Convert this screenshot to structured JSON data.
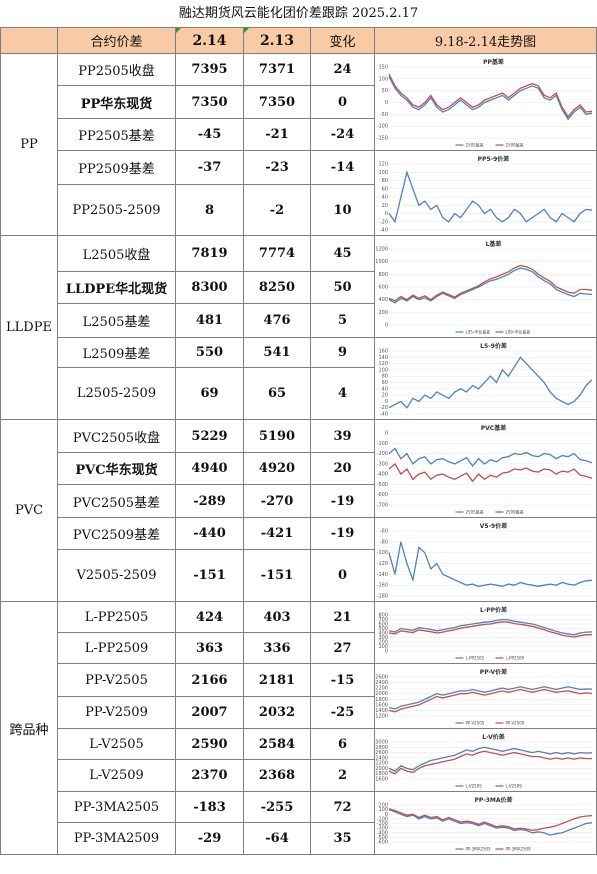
{
  "title": "融达期货风云能化团价差跟踪 2025.2.17",
  "header": {
    "name": "合约价差",
    "d1": "2.14",
    "d2": "2.13",
    "chg": "变化",
    "trend": "9.18-2.14走势图"
  },
  "groups": [
    {
      "label": "PP",
      "rows": [
        {
          "name": "PP2505收盘",
          "v1": "7395",
          "v2": "7371",
          "chg": "24",
          "bold": false
        },
        {
          "name": "PP华东现货",
          "v1": "7350",
          "v2": "7350",
          "chg": "0",
          "bold": true
        },
        {
          "name": "PP2505基差",
          "v1": "-45",
          "v2": "-21",
          "chg": "-24",
          "bold": false
        },
        {
          "name": "PP2509基差",
          "v1": "-37",
          "v2": "-23",
          "chg": "-14",
          "bold": false
        },
        {
          "name": "PP2505-2509",
          "v1": "8",
          "v2": "-2",
          "chg": "10",
          "bold": false
        }
      ]
    },
    {
      "label": "LLDPE",
      "rows": [
        {
          "name": "L2505收盘",
          "v1": "7819",
          "v2": "7774",
          "chg": "45",
          "bold": false
        },
        {
          "name": "LLDPE华北现货",
          "v1": "8300",
          "v2": "8250",
          "chg": "50",
          "bold": true
        },
        {
          "name": "L2505基差",
          "v1": "481",
          "v2": "476",
          "chg": "5",
          "bold": false
        },
        {
          "name": "L2509基差",
          "v1": "550",
          "v2": "541",
          "chg": "9",
          "bold": false
        },
        {
          "name": "L2505-2509",
          "v1": "69",
          "v2": "65",
          "chg": "4",
          "bold": false
        }
      ]
    },
    {
      "label": "PVC",
      "rows": [
        {
          "name": "PVC2505收盘",
          "v1": "5229",
          "v2": "5190",
          "chg": "39",
          "bold": false
        },
        {
          "name": "PVC华东现货",
          "v1": "4940",
          "v2": "4920",
          "chg": "20",
          "bold": true
        },
        {
          "name": "PVC2505基差",
          "v1": "-289",
          "v2": "-270",
          "chg": "-19",
          "bold": false
        },
        {
          "name": "PVC2509基差",
          "v1": "-440",
          "v2": "-421",
          "chg": "-19",
          "bold": false
        },
        {
          "name": "V2505-2509",
          "v1": "-151",
          "v2": "-151",
          "chg": "0",
          "bold": false
        }
      ]
    },
    {
      "label": "跨品种",
      "rows": [
        {
          "name": "L-PP2505",
          "v1": "424",
          "v2": "403",
          "chg": "21",
          "bold": false
        },
        {
          "name": "L-PP2509",
          "v1": "363",
          "v2": "336",
          "chg": "27",
          "bold": false
        },
        {
          "name": "PP-V2505",
          "v1": "2166",
          "v2": "2181",
          "chg": "-15",
          "bold": false
        },
        {
          "name": "PP-V2509",
          "v1": "2007",
          "v2": "2032",
          "chg": "-25",
          "bold": false
        },
        {
          "name": "L-V2505",
          "v1": "2590",
          "v2": "2584",
          "chg": "6",
          "bold": false
        },
        {
          "name": "L-V2509",
          "v1": "2370",
          "v2": "2368",
          "chg": "2",
          "bold": false
        },
        {
          "name": "PP-3MA2505",
          "v1": "-183",
          "v2": "-255",
          "chg": "72",
          "bold": false
        },
        {
          "name": "PP-3MA2509",
          "v1": "-29",
          "v2": "-64",
          "chg": "35",
          "bold": false
        }
      ]
    }
  ],
  "chart_data": [
    {
      "type": "line",
      "title": "PP基差",
      "ylim": [
        -150,
        150
      ],
      "yticks": [
        "150",
        "100",
        "50",
        "0",
        "-50",
        "-100",
        "-150"
      ],
      "legend": [
        "2505基差",
        "2509基差"
      ],
      "colors": [
        "#4f81bd",
        "#c0504d"
      ],
      "series": [
        {
          "name": "2505基差",
          "values": [
            110,
            60,
            30,
            10,
            -20,
            -30,
            -10,
            20,
            -20,
            -40,
            -30,
            -10,
            10,
            -10,
            -30,
            -20,
            0,
            10,
            20,
            30,
            10,
            30,
            50,
            60,
            70,
            60,
            20,
            10,
            30,
            -30,
            -70,
            -40,
            -20,
            -50,
            -45
          ]
        },
        {
          "name": "2509基差",
          "values": [
            120,
            70,
            40,
            20,
            -10,
            -20,
            0,
            30,
            -10,
            -30,
            -20,
            0,
            20,
            0,
            -20,
            -10,
            10,
            20,
            30,
            40,
            20,
            40,
            60,
            70,
            80,
            70,
            30,
            20,
            40,
            -20,
            -60,
            -30,
            -10,
            -40,
            -37
          ]
        }
      ]
    },
    {
      "type": "line",
      "title": "PP5-9价差",
      "ylim": [
        -40,
        120
      ],
      "yticks": [
        "120",
        "100",
        "80",
        "60",
        "40",
        "20",
        "0",
        "-20",
        "-40"
      ],
      "colors": [
        "#4f81bd"
      ],
      "series": [
        {
          "name": "",
          "values": [
            0,
            -20,
            40,
            100,
            60,
            20,
            30,
            10,
            20,
            -10,
            -20,
            0,
            -10,
            10,
            30,
            20,
            0,
            10,
            -10,
            -20,
            -10,
            10,
            0,
            -20,
            -10,
            0,
            10,
            -10,
            -20,
            0,
            -10,
            -20,
            0,
            10,
            8
          ]
        }
      ]
    },
    {
      "type": "line",
      "title": "L基差",
      "ylim": [
        0,
        1200
      ],
      "yticks": [
        "1200",
        "1000",
        "800",
        "600",
        "400",
        "200",
        "0"
      ],
      "legend": [
        "L05-华北基差",
        "L09-华北基差"
      ],
      "colors": [
        "#4f81bd",
        "#c0504d"
      ],
      "series": [
        {
          "name": "L05-华北基差",
          "values": [
            400,
            350,
            420,
            380,
            450,
            400,
            430,
            380,
            450,
            500,
            460,
            420,
            480,
            520,
            560,
            600,
            650,
            700,
            720,
            760,
            800,
            860,
            900,
            880,
            840,
            760,
            700,
            650,
            560,
            520,
            480,
            450,
            500,
            490,
            481
          ]
        },
        {
          "name": "L09-华北基差",
          "values": [
            420,
            380,
            450,
            400,
            470,
            420,
            460,
            400,
            470,
            520,
            480,
            440,
            500,
            540,
            580,
            620,
            680,
            730,
            760,
            800,
            840,
            900,
            940,
            920,
            880,
            800,
            740,
            690,
            600,
            560,
            520,
            500,
            560,
            560,
            550
          ]
        }
      ]
    },
    {
      "type": "line",
      "title": "L5-9价差",
      "ylim": [
        -40,
        160
      ],
      "yticks": [
        "160",
        "140",
        "120",
        "100",
        "80",
        "60",
        "40",
        "20",
        "0",
        "-20",
        "-40"
      ],
      "colors": [
        "#4f81bd"
      ],
      "series": [
        {
          "name": "",
          "values": [
            -20,
            -10,
            0,
            -20,
            10,
            0,
            20,
            10,
            30,
            20,
            10,
            30,
            40,
            30,
            50,
            40,
            60,
            80,
            60,
            100,
            80,
            110,
            140,
            120,
            100,
            80,
            60,
            30,
            10,
            0,
            -10,
            0,
            20,
            50,
            69
          ]
        }
      ]
    },
    {
      "type": "line",
      "title": "PVC基差",
      "ylim": [
        -700,
        0
      ],
      "yticks": [
        "0",
        "-100",
        "-200",
        "-300",
        "-400",
        "-500",
        "-600",
        "-700"
      ],
      "legend": [
        "2505基差",
        "2509基差"
      ],
      "colors": [
        "#4f81bd",
        "#c0504d"
      ],
      "series": [
        {
          "name": "2505基差",
          "values": [
            -200,
            -150,
            -250,
            -200,
            -300,
            -250,
            -230,
            -300,
            -260,
            -250,
            -280,
            -300,
            -270,
            -240,
            -320,
            -250,
            -300,
            -260,
            -280,
            -240,
            -230,
            -200,
            -210,
            -190,
            -220,
            -230,
            -200,
            -210,
            -250,
            -220,
            -230,
            -200,
            -260,
            -270,
            -289
          ]
        },
        {
          "name": "2509基差",
          "values": [
            -350,
            -300,
            -400,
            -350,
            -450,
            -400,
            -380,
            -450,
            -410,
            -400,
            -430,
            -450,
            -420,
            -390,
            -470,
            -400,
            -450,
            -410,
            -430,
            -390,
            -380,
            -350,
            -360,
            -340,
            -370,
            -380,
            -350,
            -360,
            -400,
            -370,
            -380,
            -350,
            -410,
            -420,
            -440
          ]
        }
      ]
    },
    {
      "type": "line",
      "title": "V5-9价差",
      "ylim": [
        -180,
        -60
      ],
      "yticks": [
        "-60",
        "-80",
        "-100",
        "-120",
        "-140",
        "-160",
        "-180"
      ],
      "colors": [
        "#4f81bd"
      ],
      "series": [
        {
          "name": "",
          "values": [
            -100,
            -140,
            -80,
            -120,
            -150,
            -90,
            -100,
            -130,
            -120,
            -140,
            -145,
            -150,
            -155,
            -160,
            -158,
            -162,
            -160,
            -158,
            -160,
            -162,
            -158,
            -160,
            -155,
            -158,
            -160,
            -162,
            -160,
            -158,
            -160,
            -155,
            -158,
            -160,
            -155,
            -152,
            -151
          ]
        }
      ]
    },
    {
      "type": "line",
      "title": "L-PP价差",
      "ylim": [
        0,
        800
      ],
      "yticks": [
        "800",
        "700",
        "600",
        "500",
        "400",
        "300",
        "200",
        "100",
        "0"
      ],
      "legend": [
        "L-PP2505",
        "L-PP2509"
      ],
      "colors": [
        "#4f81bd",
        "#c0504d"
      ],
      "series": [
        {
          "name": "L-PP2505",
          "values": [
            450,
            420,
            500,
            480,
            460,
            520,
            500,
            480,
            450,
            470,
            500,
            520,
            560,
            580,
            600,
            620,
            640,
            650,
            680,
            700,
            690,
            660,
            640,
            620,
            600,
            560,
            520,
            480,
            440,
            400,
            380,
            360,
            400,
            420,
            424
          ]
        },
        {
          "name": "L-PP2509",
          "values": [
            400,
            380,
            450,
            430,
            410,
            470,
            450,
            430,
            400,
            420,
            450,
            470,
            510,
            530,
            550,
            570,
            590,
            600,
            630,
            650,
            640,
            610,
            590,
            570,
            550,
            510,
            470,
            430,
            390,
            350,
            330,
            310,
            340,
            360,
            363
          ]
        }
      ]
    },
    {
      "type": "line",
      "title": "PP-V价差",
      "ylim": [
        1200,
        2600
      ],
      "yticks": [
        "2600",
        "2400",
        "2200",
        "2000",
        "1800",
        "1600",
        "1400",
        "1200"
      ],
      "legend": [
        "PP-V2505",
        "PP-V2509"
      ],
      "colors": [
        "#4f81bd",
        "#c0504d"
      ],
      "series": [
        {
          "name": "PP-V2505",
          "values": [
            1500,
            1450,
            1550,
            1600,
            1650,
            1700,
            1800,
            1900,
            2000,
            1950,
            2000,
            2050,
            2100,
            2100,
            2150,
            2100,
            2050,
            2100,
            2150,
            2200,
            2150,
            2200,
            2250,
            2200,
            2150,
            2200,
            2250,
            2200,
            2150,
            2200,
            2250,
            2200,
            2150,
            2170,
            2166
          ]
        },
        {
          "name": "PP-V2509",
          "values": [
            1400,
            1350,
            1450,
            1500,
            1550,
            1600,
            1700,
            1800,
            1900,
            1850,
            1900,
            1950,
            2000,
            2000,
            2050,
            2000,
            1950,
            2000,
            2050,
            2100,
            2050,
            2100,
            2150,
            2100,
            2050,
            2100,
            2150,
            2100,
            2050,
            2080,
            2100,
            2050,
            2000,
            2030,
            2007
          ]
        }
      ]
    },
    {
      "type": "line",
      "title": "L-V价差",
      "ylim": [
        1600,
        3000
      ],
      "yticks": [
        "3000",
        "2800",
        "2600",
        "2400",
        "2200",
        "2000",
        "1800",
        "1600"
      ],
      "legend": [
        "L-V2505",
        "L-V2509"
      ],
      "colors": [
        "#4f81bd",
        "#c0504d"
      ],
      "series": [
        {
          "name": "L-V2505",
          "values": [
            2000,
            1900,
            2100,
            2000,
            1950,
            2100,
            2200,
            2300,
            2350,
            2400,
            2450,
            2500,
            2600,
            2700,
            2650,
            2750,
            2800,
            2750,
            2700,
            2650,
            2700,
            2750,
            2700,
            2650,
            2600,
            2650,
            2600,
            2550,
            2600,
            2550,
            2600,
            2550,
            2600,
            2580,
            2590
          ]
        },
        {
          "name": "L-V2509",
          "values": [
            1900,
            1800,
            2000,
            1900,
            1850,
            2000,
            2100,
            2150,
            2200,
            2250,
            2300,
            2350,
            2450,
            2550,
            2500,
            2600,
            2650,
            2600,
            2550,
            2500,
            2550,
            2600,
            2550,
            2500,
            2450,
            2450,
            2400,
            2350,
            2400,
            2350,
            2400,
            2350,
            2400,
            2370,
            2370
          ]
        }
      ]
    },
    {
      "type": "line",
      "title": "PP-3MA价差",
      "ylim": [
        -600,
        200
      ],
      "yticks": [
        "200",
        "100",
        "0",
        "-100",
        "-200",
        "-300",
        "-400",
        "-500",
        "-600"
      ],
      "legend": [
        "PP-3MA2505",
        "PP-3MA2509"
      ],
      "colors": [
        "#4f81bd",
        "#c0504d"
      ],
      "series": [
        {
          "name": "PP-3MA2505",
          "values": [
            100,
            50,
            0,
            -50,
            -20,
            -100,
            -50,
            -100,
            -80,
            -150,
            -100,
            -150,
            -200,
            -180,
            -200,
            -250,
            -200,
            -250,
            -300,
            -280,
            -300,
            -350,
            -330,
            -350,
            -400,
            -380,
            -400,
            -450,
            -420,
            -400,
            -350,
            -300,
            -250,
            -200,
            -183
          ]
        },
        {
          "name": "PP-3MA2509",
          "values": [
            120,
            80,
            30,
            -20,
            0,
            -70,
            -20,
            -70,
            -50,
            -120,
            -70,
            -120,
            -170,
            -150,
            -170,
            -220,
            -170,
            -220,
            -270,
            -250,
            -270,
            -320,
            -300,
            -320,
            -350,
            -330,
            -300,
            -280,
            -250,
            -200,
            -150,
            -100,
            -60,
            -40,
            -29
          ]
        }
      ]
    }
  ]
}
